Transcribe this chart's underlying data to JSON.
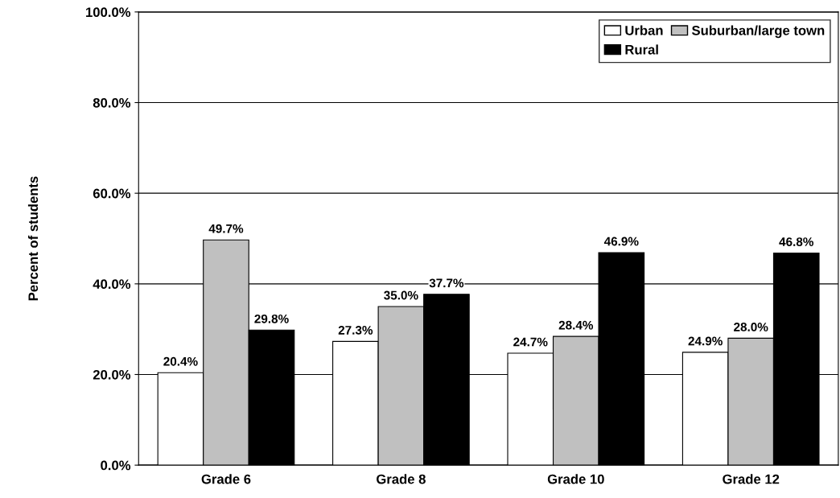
{
  "chart_data": {
    "type": "bar",
    "ylabel": "Percent of students",
    "categories": [
      "Grade 6",
      "Grade 8",
      "Grade 10",
      "Grade 12"
    ],
    "series": [
      {
        "name": "Urban",
        "color": "#ffffff",
        "values": [
          20.4,
          27.3,
          24.7,
          24.9
        ],
        "value_labels": [
          "20.4%",
          "27.3%",
          "24.7%",
          "24.9%"
        ]
      },
      {
        "name": "Suburban/large town",
        "color": "#c0c0c0",
        "values": [
          49.7,
          35.0,
          28.4,
          28.0
        ],
        "value_labels": [
          "49.7%",
          "35.0%",
          "28.4%",
          "28.0%"
        ]
      },
      {
        "name": "Rural",
        "color": "#000000",
        "values": [
          29.8,
          37.7,
          46.9,
          46.8
        ],
        "value_labels": [
          "29.8%",
          "37.7%",
          "46.9%",
          "46.8%"
        ]
      }
    ],
    "ylim": [
      0,
      100
    ],
    "yticks": [
      {
        "value": 0,
        "label": "0.0%"
      },
      {
        "value": 20,
        "label": "20.0%"
      },
      {
        "value": 40,
        "label": "40.0%"
      },
      {
        "value": 60,
        "label": "60.0%"
      },
      {
        "value": 80,
        "label": "80.0%"
      },
      {
        "value": 100,
        "label": "100.0%"
      }
    ],
    "grid": "y",
    "legend": "top right"
  }
}
